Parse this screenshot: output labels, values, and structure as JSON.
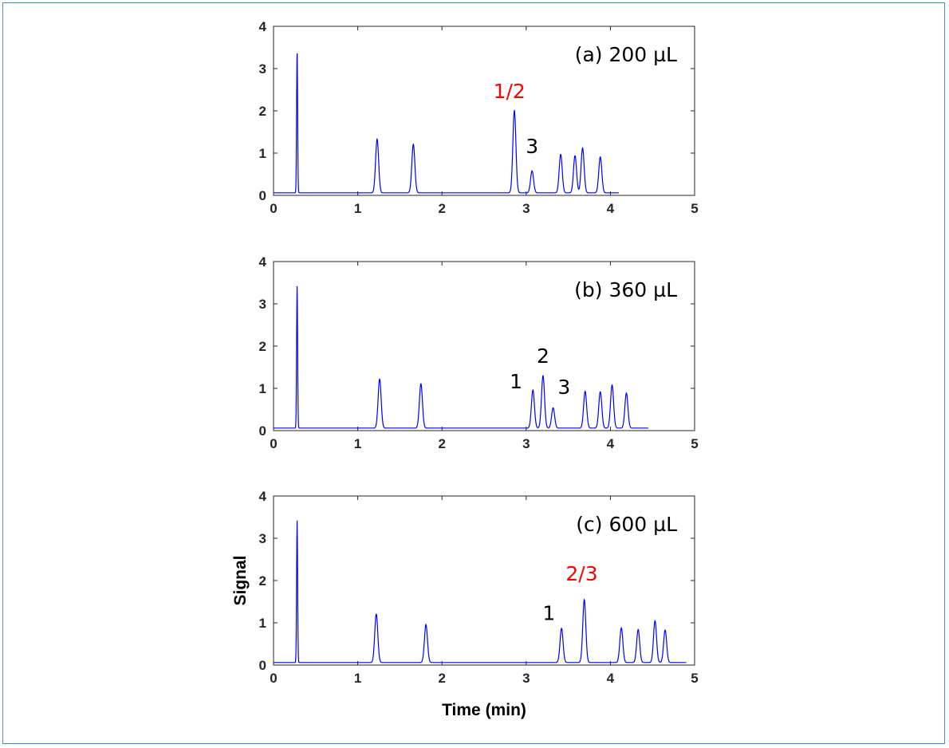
{
  "chart_data": [
    {
      "type": "line",
      "panel_label": "(a) 200 µL",
      "xlim": [
        0,
        5
      ],
      "ylim": [
        0,
        4
      ],
      "xticks": [
        "0",
        "1",
        "2",
        "3",
        "4",
        "5"
      ],
      "yticks": [
        "0",
        "1",
        "2",
        "3",
        "4"
      ],
      "xlabel": "",
      "ylabel": "",
      "baseline": 0.06,
      "x_end": 4.1,
      "line_color": "#0000ff",
      "peaks": [
        {
          "x": 0.28,
          "height": 3.42
        },
        {
          "x": 1.23,
          "height": 1.33
        },
        {
          "x": 1.66,
          "height": 1.21
        },
        {
          "x": 2.86,
          "height": 2.01
        },
        {
          "x": 3.07,
          "height": 0.58
        },
        {
          "x": 3.41,
          "height": 0.97
        },
        {
          "x": 3.58,
          "height": 0.94
        },
        {
          "x": 3.67,
          "height": 1.12
        },
        {
          "x": 3.88,
          "height": 0.91
        }
      ],
      "annotations": [
        {
          "text": "1/2",
          "x": 2.8,
          "y": 2.3,
          "color": "#ff0000"
        },
        {
          "text": "3",
          "x": 3.07,
          "y": 1.0,
          "color": "#000000"
        }
      ]
    },
    {
      "type": "line",
      "panel_label": "(b) 360 µL",
      "xlim": [
        0,
        5
      ],
      "ylim": [
        0,
        4
      ],
      "xticks": [
        "0",
        "1",
        "2",
        "3",
        "4",
        "5"
      ],
      "yticks": [
        "0",
        "1",
        "2",
        "3",
        "4"
      ],
      "xlabel": "",
      "ylabel": "",
      "baseline": 0.06,
      "x_end": 4.45,
      "line_color": "#0000ff",
      "peaks": [
        {
          "x": 0.28,
          "height": 3.42
        },
        {
          "x": 1.26,
          "height": 1.22
        },
        {
          "x": 1.75,
          "height": 1.11
        },
        {
          "x": 3.08,
          "height": 0.96
        },
        {
          "x": 3.2,
          "height": 1.3
        },
        {
          "x": 3.32,
          "height": 0.54
        },
        {
          "x": 3.7,
          "height": 0.93
        },
        {
          "x": 3.88,
          "height": 0.92
        },
        {
          "x": 4.02,
          "height": 1.08
        },
        {
          "x": 4.19,
          "height": 0.89
        }
      ],
      "annotations": [
        {
          "text": "1",
          "x": 2.88,
          "y": 1.0,
          "color": "#000000"
        },
        {
          "text": "2",
          "x": 3.2,
          "y": 1.6,
          "color": "#000000"
        },
        {
          "text": "3",
          "x": 3.45,
          "y": 0.87,
          "color": "#000000"
        }
      ]
    },
    {
      "type": "line",
      "panel_label": "(c) 600 µL",
      "xlim": [
        0,
        5
      ],
      "ylim": [
        0,
        4
      ],
      "xticks": [
        "0",
        "1",
        "2",
        "3",
        "4",
        "5"
      ],
      "yticks": [
        "0",
        "1",
        "2",
        "3",
        "4"
      ],
      "xlabel": "Time (min)",
      "ylabel": "Signal",
      "baseline": 0.06,
      "x_end": 4.9,
      "line_color": "#0000ff",
      "peaks": [
        {
          "x": 0.28,
          "height": 3.42
        },
        {
          "x": 1.22,
          "height": 1.21
        },
        {
          "x": 1.81,
          "height": 0.96
        },
        {
          "x": 3.42,
          "height": 0.87
        },
        {
          "x": 3.69,
          "height": 1.55
        },
        {
          "x": 4.13,
          "height": 0.88
        },
        {
          "x": 4.33,
          "height": 0.84
        },
        {
          "x": 4.53,
          "height": 1.05
        },
        {
          "x": 4.65,
          "height": 0.83
        }
      ],
      "annotations": [
        {
          "text": "1",
          "x": 3.27,
          "y": 1.07,
          "color": "#000000"
        },
        {
          "text": "2/3",
          "x": 3.66,
          "y": 2.0,
          "color": "#ff0000"
        }
      ]
    }
  ]
}
